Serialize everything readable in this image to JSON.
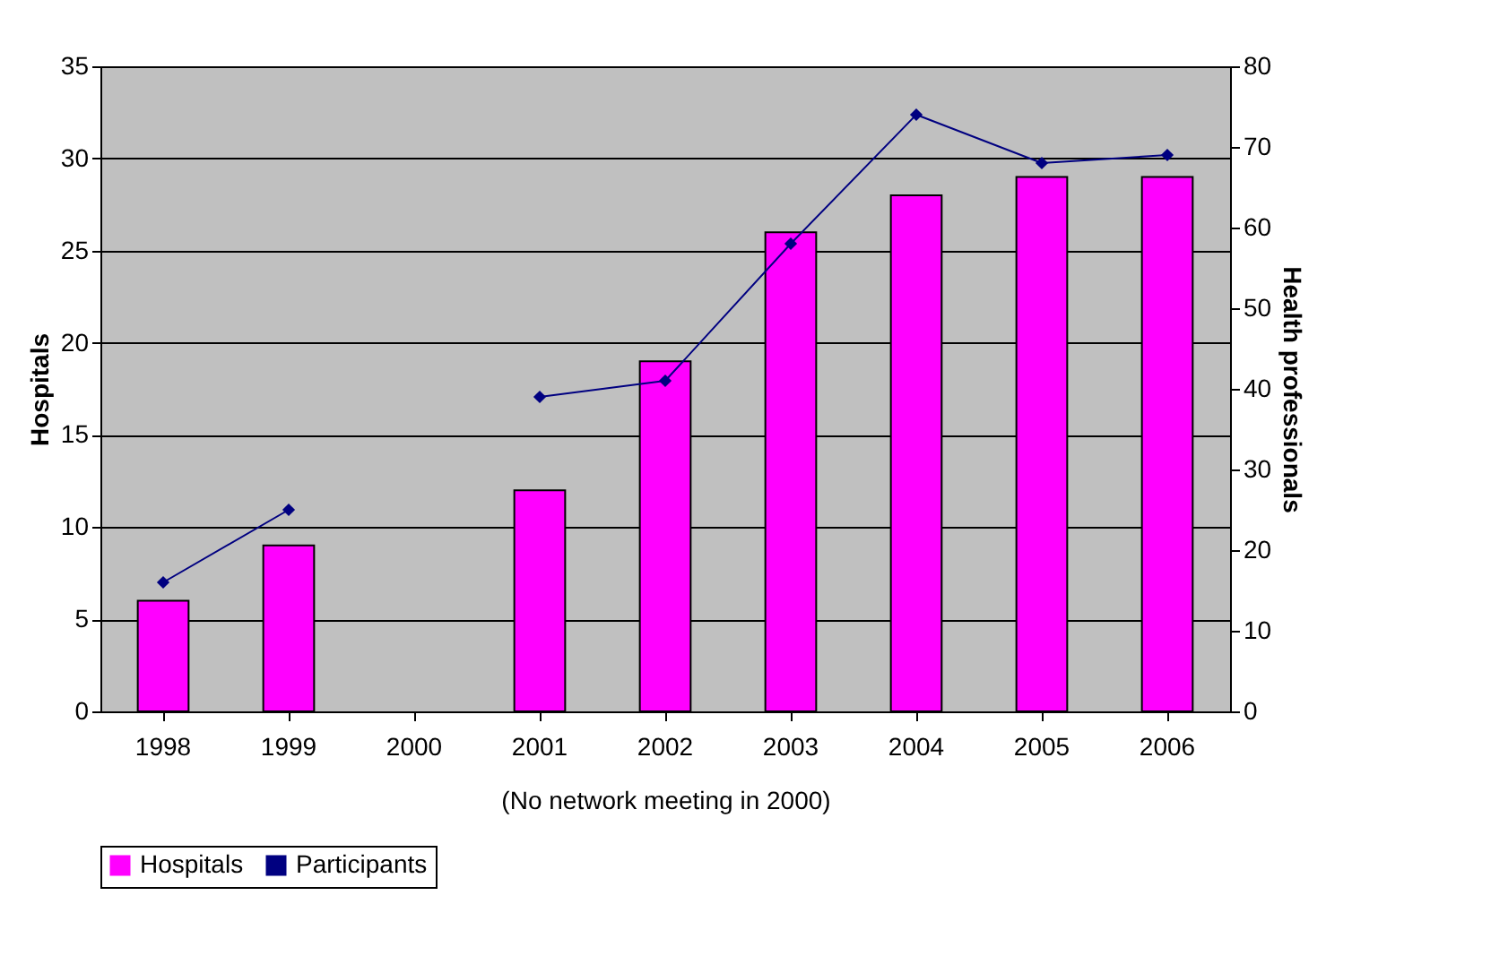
{
  "chart_data": {
    "type": "bar",
    "xlabel": "(No network meeting in 2000)",
    "ylabel": "Hospitals",
    "y2label": "Health professionals",
    "categories": [
      "1998",
      "1999",
      "2000",
      "2001",
      "2002",
      "2003",
      "2004",
      "2005",
      "2006"
    ],
    "series": [
      {
        "name": "Hospitals",
        "type": "bar",
        "color": "#ff00ff",
        "values": [
          6,
          9,
          null,
          12,
          19,
          26,
          28,
          29,
          29
        ]
      },
      {
        "name": "Participants",
        "type": "line",
        "axis": "y2",
        "color": "#000080",
        "values": [
          16,
          25,
          null,
          39,
          41,
          58,
          74,
          68,
          69
        ]
      }
    ],
    "ylim": [
      0,
      35
    ],
    "yticks": [
      0,
      5,
      10,
      15,
      20,
      25,
      30,
      35
    ],
    "y2lim": [
      0,
      80
    ],
    "y2ticks": [
      0,
      10,
      20,
      30,
      40,
      50,
      60,
      70,
      80
    ],
    "grid": "y",
    "legend": "bottom",
    "marker": "diamond"
  }
}
